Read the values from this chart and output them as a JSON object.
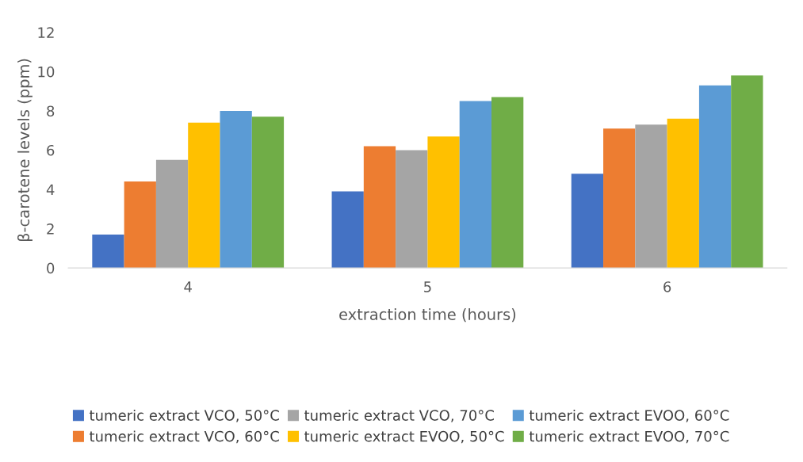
{
  "chart_data": {
    "type": "bar",
    "xlabel": "extraction time (hours)",
    "ylabel": "β-carotene levels (ppm)",
    "categories": [
      "4",
      "5",
      "6"
    ],
    "series": [
      {
        "name": "tumeric extract VCO, 50°C",
        "color": "#4472c4",
        "values": [
          1.7,
          3.9,
          4.8
        ]
      },
      {
        "name": "tumeric extract VCO, 60°C",
        "color": "#ed7d31",
        "values": [
          4.4,
          6.2,
          7.1
        ]
      },
      {
        "name": "tumeric extract VCO, 70°C",
        "color": "#a5a5a5",
        "values": [
          5.5,
          6.0,
          7.3
        ]
      },
      {
        "name": "tumeric extract EVOO, 50°C",
        "color": "#ffc000",
        "values": [
          7.4,
          6.7,
          7.6
        ]
      },
      {
        "name": "tumeric extract EVOO, 60°C",
        "color": "#5b9bd5",
        "values": [
          8.0,
          8.5,
          9.3
        ]
      },
      {
        "name": "tumeric extract EVOO, 70°C",
        "color": "#70ad47",
        "values": [
          7.7,
          8.7,
          9.8
        ]
      }
    ],
    "ylim": [
      0,
      12
    ],
    "yticks": [
      0,
      2,
      4,
      6,
      8,
      10,
      12
    ],
    "grid": false,
    "legend": "bottom"
  }
}
